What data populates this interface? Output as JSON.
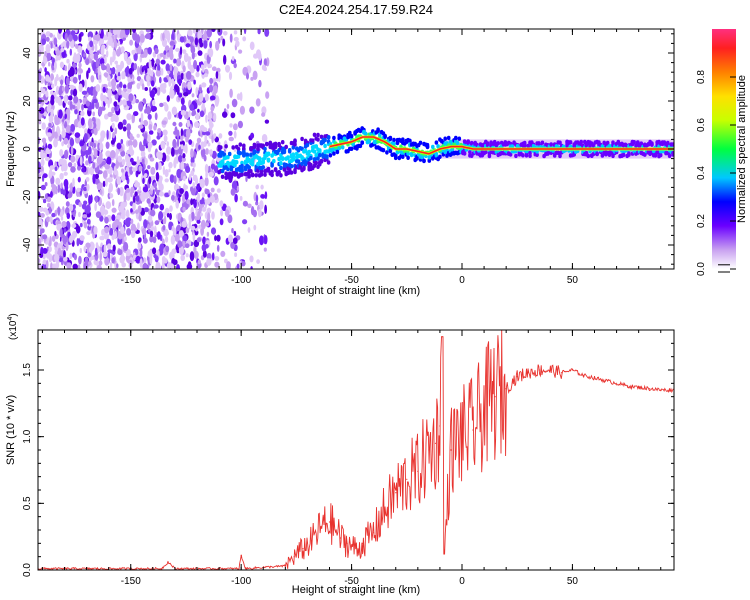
{
  "title": "C2E4.2024.254.17.59.R24",
  "chart_data": [
    {
      "type": "heatmap",
      "xlabel": "Height of straight line (km)",
      "ylabel": "Frequency (Hz)",
      "xlim": [
        -192,
        96
      ],
      "ylim": [
        -50,
        50
      ],
      "xticks": [
        -150,
        -100,
        -50,
        0,
        50
      ],
      "yticks": [
        -40,
        -20,
        0,
        20,
        40
      ],
      "colorbar": {
        "label": "Normalized spectral amplitude",
        "range": [
          0.0,
          1.0
        ],
        "ticks": [
          "0.0",
          "0.2",
          "0.4",
          "0.6",
          "0.8"
        ]
      },
      "center_frequency_track": {
        "x": [
          -110,
          -100,
          -90,
          -80,
          -70,
          -60,
          -50,
          -45,
          -40,
          -35,
          -30,
          -25,
          -20,
          -15,
          -10,
          -5,
          0,
          5,
          10,
          20,
          40,
          60,
          80,
          96
        ],
        "y": [
          -5,
          -5,
          -4,
          -4,
          -2,
          1,
          3,
          5,
          5,
          3,
          0,
          0,
          -1,
          -2,
          0,
          1,
          1,
          0,
          0,
          0,
          0,
          0,
          0,
          0
        ]
      },
      "noise_region_x": [
        -192,
        -88
      ]
    },
    {
      "type": "line",
      "xlabel": "Height of straight line (km)",
      "ylabel": "SNR (10 * v/v)",
      "y_multiplier": "(x10",
      "y_exponent": "4",
      "xlim": [
        -192,
        96
      ],
      "ylim": [
        0,
        1.8
      ],
      "xticks": [
        -150,
        -100,
        -50,
        0,
        50
      ],
      "yticks": [
        "0.0",
        "0.5",
        "1.0",
        "1.5"
      ],
      "series": [
        {
          "name": "SNR",
          "color": "#e8322e",
          "x": [
            -192,
            -170,
            -150,
            -136,
            -133,
            -130,
            -110,
            -101,
            -100,
            -98,
            -90,
            -80,
            -76,
            -72,
            -68,
            -64,
            -60,
            -57,
            -55,
            -52,
            -50,
            -47,
            -45,
            -40,
            -35,
            -30,
            -25,
            -20,
            -15,
            -12,
            -10,
            -9,
            -8,
            -5,
            0,
            5,
            10,
            15,
            20,
            25,
            30,
            35,
            40,
            45,
            50,
            55,
            60,
            65,
            70,
            75,
            80,
            85,
            90,
            96
          ],
          "y": [
            0.01,
            0.01,
            0.01,
            0.01,
            0.06,
            0.01,
            0.01,
            0.01,
            0.11,
            0.01,
            0.02,
            0.03,
            0.1,
            0.16,
            0.22,
            0.32,
            0.36,
            0.3,
            0.24,
            0.2,
            0.18,
            0.15,
            0.2,
            0.28,
            0.45,
            0.58,
            0.68,
            0.74,
            0.9,
            0.95,
            1.08,
            1.75,
            0.15,
            0.9,
            1.0,
            1.05,
            1.2,
            1.3,
            1.36,
            1.45,
            1.48,
            1.5,
            1.5,
            1.48,
            1.5,
            1.46,
            1.44,
            1.42,
            1.4,
            1.38,
            1.37,
            1.36,
            1.35,
            1.35
          ]
        }
      ]
    }
  ]
}
